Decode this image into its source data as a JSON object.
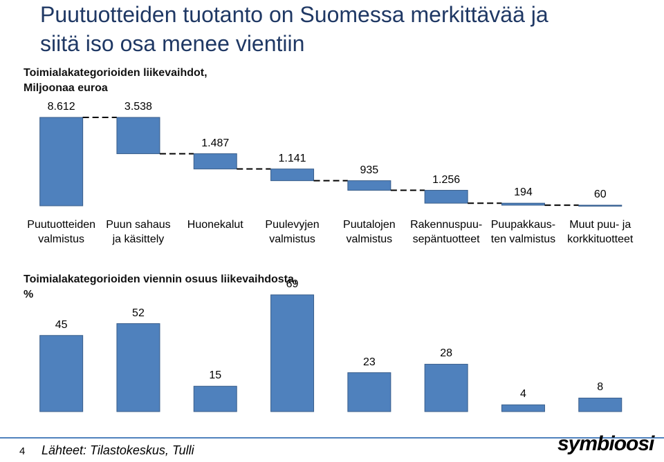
{
  "page": {
    "title": "Puutuotteiden tuotanto on Suomessa merkittävää ja\nsiitä iso osa menee vientiin",
    "page_number": "4",
    "source": "Lähteet: Tilastokeskus, Tulli",
    "logo": "symbioosi"
  },
  "chart_data": [
    {
      "type": "waterfall",
      "title": "Toimialakategorioiden liikevaihdot,\nMiljoonaa euroa",
      "categories": [
        "Puutuotteiden\nvalmistus",
        "Puun sahaus\nja käsittely",
        "Huonekalut",
        "Puulevyjen\nvalmistus",
        "Puutalojen\nvalmistus",
        "Rakennuspuu-\nsepäntuotteet",
        "Puupakkaus-\nten valmistus",
        "Muut puu- ja\nkorkkituotteet"
      ],
      "values": [
        8612,
        3538,
        1487,
        1141,
        935,
        1256,
        194,
        60
      ],
      "value_labels": [
        "8.612",
        "3.538",
        "1.487",
        "1.141",
        "935",
        "1.256",
        "194",
        "60"
      ],
      "color": "#4f81bd"
    },
    {
      "type": "bar",
      "title": "Toimialakategorioiden viennin osuus liikevaihdosta,\n%",
      "values": [
        45,
        52,
        15,
        69,
        23,
        28,
        4,
        8
      ],
      "color": "#4f81bd"
    }
  ]
}
